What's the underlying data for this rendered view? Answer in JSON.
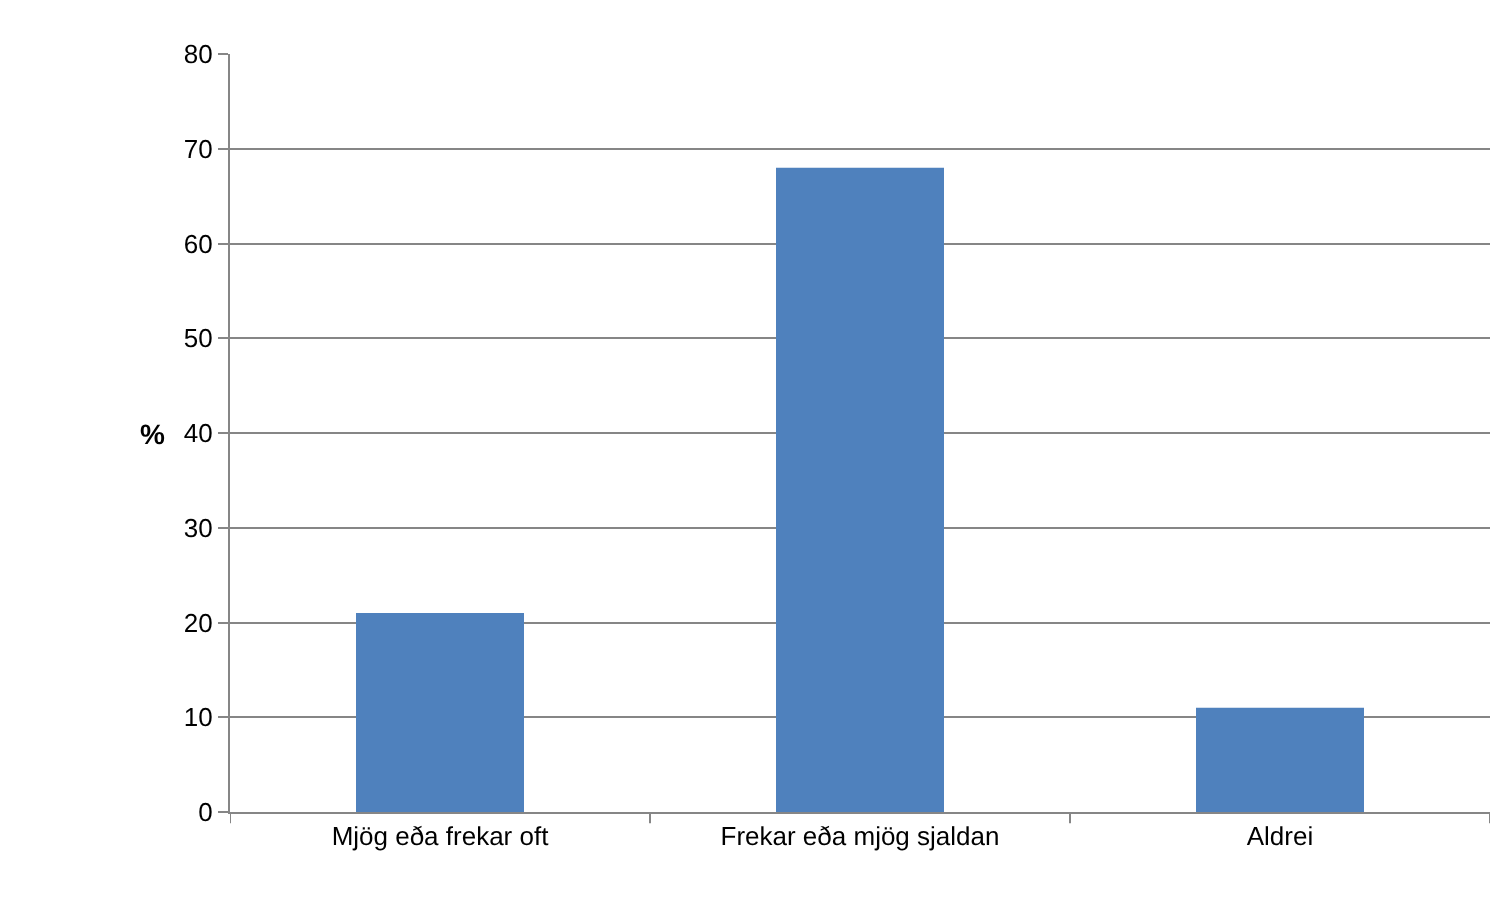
{
  "chart_data": {
    "type": "bar",
    "ylabel": "%",
    "categories": [
      "Mjög eða frekar oft",
      "Frekar eða mjög sjaldan",
      "Aldrei"
    ],
    "values": [
      21,
      68,
      11
    ],
    "color": "#4f81bd",
    "ylim": [
      0,
      80
    ],
    "yticks": [
      0,
      10,
      20,
      30,
      40,
      50,
      60,
      70,
      80
    ],
    "grid": "y"
  }
}
